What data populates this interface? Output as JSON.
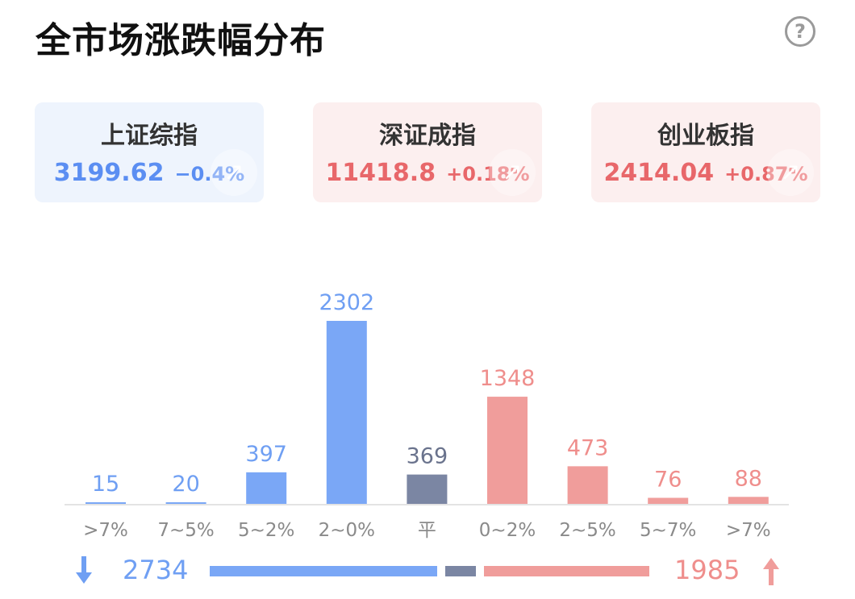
{
  "header": {
    "title": "全市场涨跌幅分布",
    "help_icon": "question-circle-icon"
  },
  "indices": [
    {
      "name": "上证综指",
      "value": "3199.62",
      "change": "−0.4%",
      "color": "#5b8ef2",
      "bg": "#eef4fd"
    },
    {
      "name": "深证成指",
      "value": "11418.8",
      "change": "+0.18%",
      "color": "#e8676a",
      "bg": "#fcefef"
    },
    {
      "name": "创业板指",
      "value": "2414.04",
      "change": "+0.87%",
      "color": "#e8676a",
      "bg": "#fcefef"
    }
  ],
  "chart_data": {
    "type": "bar",
    "categories": [
      ">7%",
      "7~5%",
      "5~2%",
      "2~0%",
      "平",
      "0~2%",
      "2~5%",
      "5~7%",
      ">7%"
    ],
    "values": [
      15,
      20,
      397,
      2302,
      369,
      1348,
      473,
      76,
      88
    ],
    "bar_colors": [
      "#7aa7f6",
      "#7aa7f6",
      "#7aa7f6",
      "#7aa7f6",
      "#7b86a3",
      "#f09d9b",
      "#f09d9b",
      "#f09d9b",
      "#f09d9b"
    ],
    "label_colors": [
      "#6f9ff3",
      "#6f9ff3",
      "#6f9ff3",
      "#6f9ff3",
      "#6a738d",
      "#ef8e8c",
      "#ef8e8c",
      "#ef8e8c",
      "#ef8e8c"
    ],
    "ylim": [
      0,
      2302
    ]
  },
  "summary": {
    "down_count": "2734",
    "up_count": "1985",
    "down_icon": "arrow-down-icon",
    "up_icon": "arrow-up-icon",
    "down_color": "#6f9ff3",
    "flat_color": "#7b86a3",
    "up_color": "#f09d9b"
  }
}
